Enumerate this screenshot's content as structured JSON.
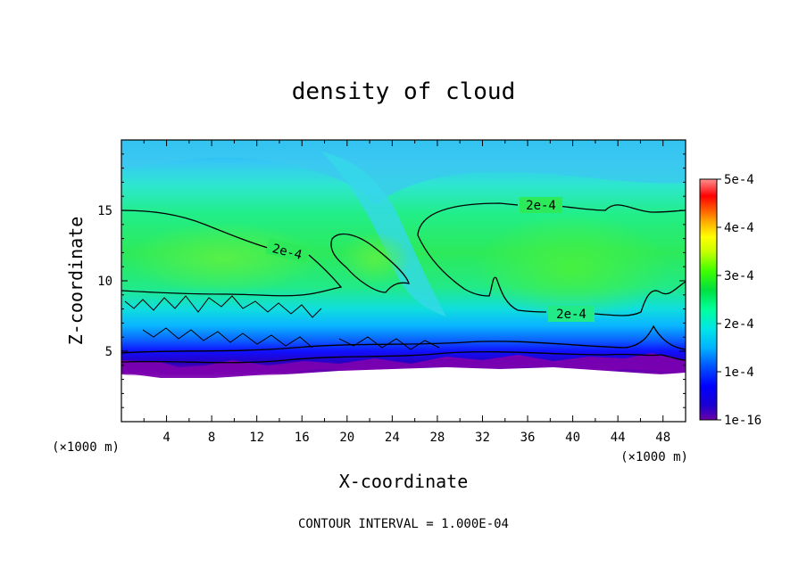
{
  "chart_data": {
    "type": "heatmap",
    "title": "density of cloud",
    "xlabel": "X-coordinate",
    "ylabel": "Z-coordinate",
    "x_unit_left": "(×1000 m)",
    "x_unit_right": "(×1000 m)",
    "xlim": [
      0,
      50
    ],
    "ylim": [
      0,
      20
    ],
    "x_ticks": [
      4,
      8,
      12,
      16,
      20,
      24,
      28,
      32,
      36,
      40,
      44,
      48
    ],
    "y_ticks": [
      5,
      10,
      15
    ],
    "grid": false,
    "colorbar": {
      "ticks": [
        "5e-4",
        "4e-4",
        "3e-4",
        "2e-4",
        "1e-4",
        "1e-16"
      ],
      "tick_values": [
        0.0005,
        0.0004,
        0.0003,
        0.0002,
        0.0001,
        1e-16
      ],
      "range": [
        1e-16,
        0.0005
      ],
      "placement": "right"
    },
    "contour_level": 0.0002,
    "contour_labels": [
      "2e-4",
      "2e-4",
      "2e-4"
    ],
    "footer": "CONTOUR INTERVAL = 1.000E-04"
  },
  "colors": {
    "background": "#ffffff",
    "axis": "#000000",
    "contour": "#000000"
  }
}
